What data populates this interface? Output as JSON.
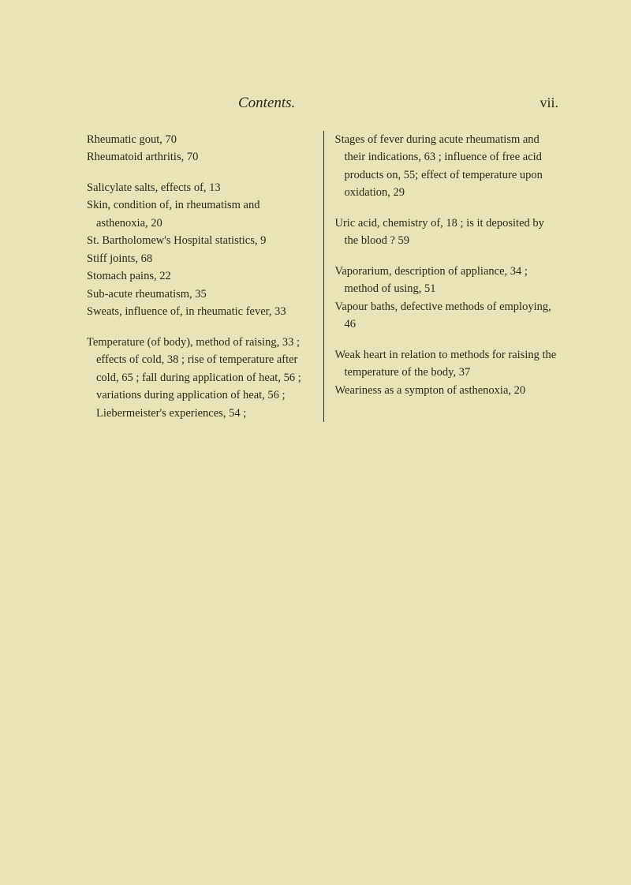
{
  "header": {
    "title": "Contents.",
    "page": "vii."
  },
  "leftColumn": {
    "entries": [
      "Rheumatic gout, 70",
      "Rheumatoid arthritis, 70"
    ],
    "entries2": [
      "Salicylate salts, effects of, 13",
      "Skin, condition of, in rheumatism and asthenoxia, 20",
      "St. Bartholomew's Hospital statistics, 9",
      "Stiff joints, 68",
      "Stomach pains, 22",
      "Sub-acute rheumatism, 35",
      "Sweats, influence of, in rheumatic fever, 33"
    ],
    "entries3": [
      "Temperature (of body), method of raising, 33 ; effects of cold, 38 ; rise of temperature after cold, 65 ; fall during application of heat, 56 ; variations during application of heat, 56 ; Liebermeister's experiences, 54 ;"
    ]
  },
  "rightColumn": {
    "entries": [
      "Stages of fever during acute rheumatism and their indications, 63 ; influence of free acid products on, 55; effect of temperature upon oxidation, 29"
    ],
    "entries2": [
      "Uric acid, chemistry of, 18 ; is it deposited by the blood ? 59"
    ],
    "entries3": [
      "Vaporarium, description of appliance, 34 ; method of using, 51",
      "Vapour baths, defective methods of employing, 46"
    ],
    "entries4": [
      "Weak heart in relation to methods for raising the temperature of the body, 37",
      "Weariness as a sympton of asthenoxia, 20"
    ]
  }
}
